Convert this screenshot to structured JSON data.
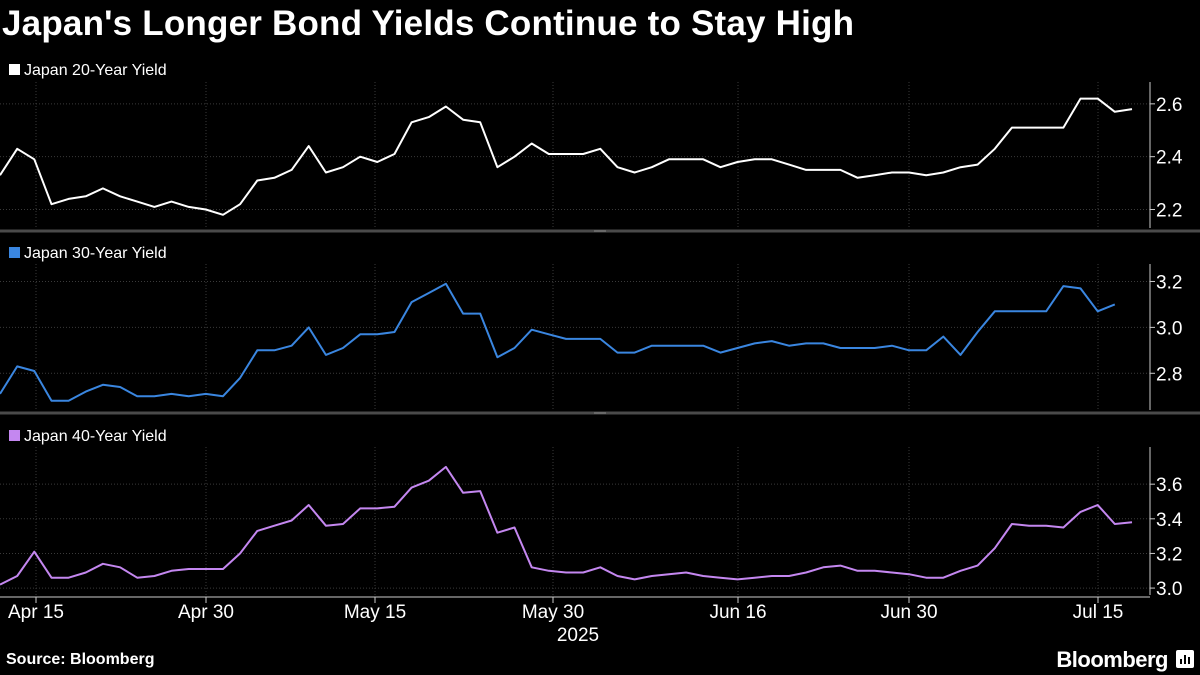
{
  "title": "Japan's Longer Bond Yields Continue to Stay High",
  "source": "Source: Bloomberg",
  "brand": "Bloomberg",
  "chart_data": {
    "type": "line",
    "x_axis": {
      "tick_labels": [
        "Apr 15",
        "Apr 30",
        "May 15",
        "May 30",
        "Jun 16",
        "Jun 30",
        "Jul 15"
      ],
      "year_label": "2025"
    },
    "panels": [
      {
        "name": "Japan 20-Year Yield",
        "color": "#ffffff",
        "ylim": [
          2.13,
          2.66
        ],
        "yticks": [
          "2.2",
          "2.4",
          "2.6"
        ],
        "values": [
          2.33,
          2.43,
          2.39,
          2.22,
          2.24,
          2.25,
          2.28,
          2.25,
          2.23,
          2.21,
          2.23,
          2.21,
          2.2,
          2.18,
          2.22,
          2.31,
          2.32,
          2.35,
          2.44,
          2.34,
          2.36,
          2.4,
          2.38,
          2.41,
          2.53,
          2.55,
          2.59,
          2.54,
          2.53,
          2.36,
          2.4,
          2.45,
          2.41,
          2.41,
          2.41,
          2.43,
          2.36,
          2.34,
          2.36,
          2.39,
          2.39,
          2.39,
          2.36,
          2.38,
          2.39,
          2.39,
          2.37,
          2.35,
          2.35,
          2.35,
          2.32,
          2.33,
          2.34,
          2.34,
          2.33,
          2.34,
          2.36,
          2.37,
          2.43,
          2.51,
          2.51,
          2.51,
          2.51,
          2.62,
          2.62,
          2.57,
          2.58
        ]
      },
      {
        "name": "Japan 30-Year Yield",
        "color": "#3a86e0",
        "ylim": [
          2.64,
          3.25
        ],
        "yticks": [
          "2.8",
          "3.0",
          "3.2"
        ],
        "values": [
          2.71,
          2.83,
          2.81,
          2.68,
          2.68,
          2.72,
          2.75,
          2.74,
          2.7,
          2.7,
          2.71,
          2.7,
          2.71,
          2.7,
          2.78,
          2.9,
          2.9,
          2.92,
          3.0,
          2.88,
          2.91,
          2.97,
          2.97,
          2.98,
          3.11,
          3.15,
          3.19,
          3.06,
          3.06,
          2.87,
          2.91,
          2.99,
          2.97,
          2.95,
          2.95,
          2.95,
          2.89,
          2.89,
          2.92,
          2.92,
          2.92,
          2.92,
          2.89,
          2.91,
          2.93,
          2.94,
          2.92,
          2.93,
          2.93,
          2.91,
          2.91,
          2.91,
          2.92,
          2.9,
          2.9,
          2.96,
          2.88,
          2.98,
          3.07,
          3.07,
          3.07,
          3.07,
          3.18,
          3.17,
          3.07,
          3.1
        ]
      },
      {
        "name": "Japan 40-Year Yield",
        "color": "#c487f0",
        "ylim": [
          2.96,
          3.78
        ],
        "yticks": [
          "3.0",
          "3.2",
          "3.4",
          "3.6"
        ],
        "values": [
          3.02,
          3.07,
          3.21,
          3.06,
          3.06,
          3.09,
          3.14,
          3.12,
          3.06,
          3.07,
          3.1,
          3.11,
          3.11,
          3.11,
          3.2,
          3.33,
          3.36,
          3.39,
          3.48,
          3.36,
          3.37,
          3.46,
          3.46,
          3.47,
          3.58,
          3.62,
          3.7,
          3.55,
          3.56,
          3.32,
          3.35,
          3.12,
          3.1,
          3.09,
          3.09,
          3.12,
          3.07,
          3.05,
          3.07,
          3.08,
          3.09,
          3.07,
          3.06,
          3.05,
          3.06,
          3.07,
          3.07,
          3.09,
          3.12,
          3.13,
          3.1,
          3.1,
          3.09,
          3.08,
          3.06,
          3.06,
          3.1,
          3.13,
          3.23,
          3.37,
          3.36,
          3.36,
          3.35,
          3.44,
          3.48,
          3.37,
          3.38
        ]
      }
    ]
  }
}
